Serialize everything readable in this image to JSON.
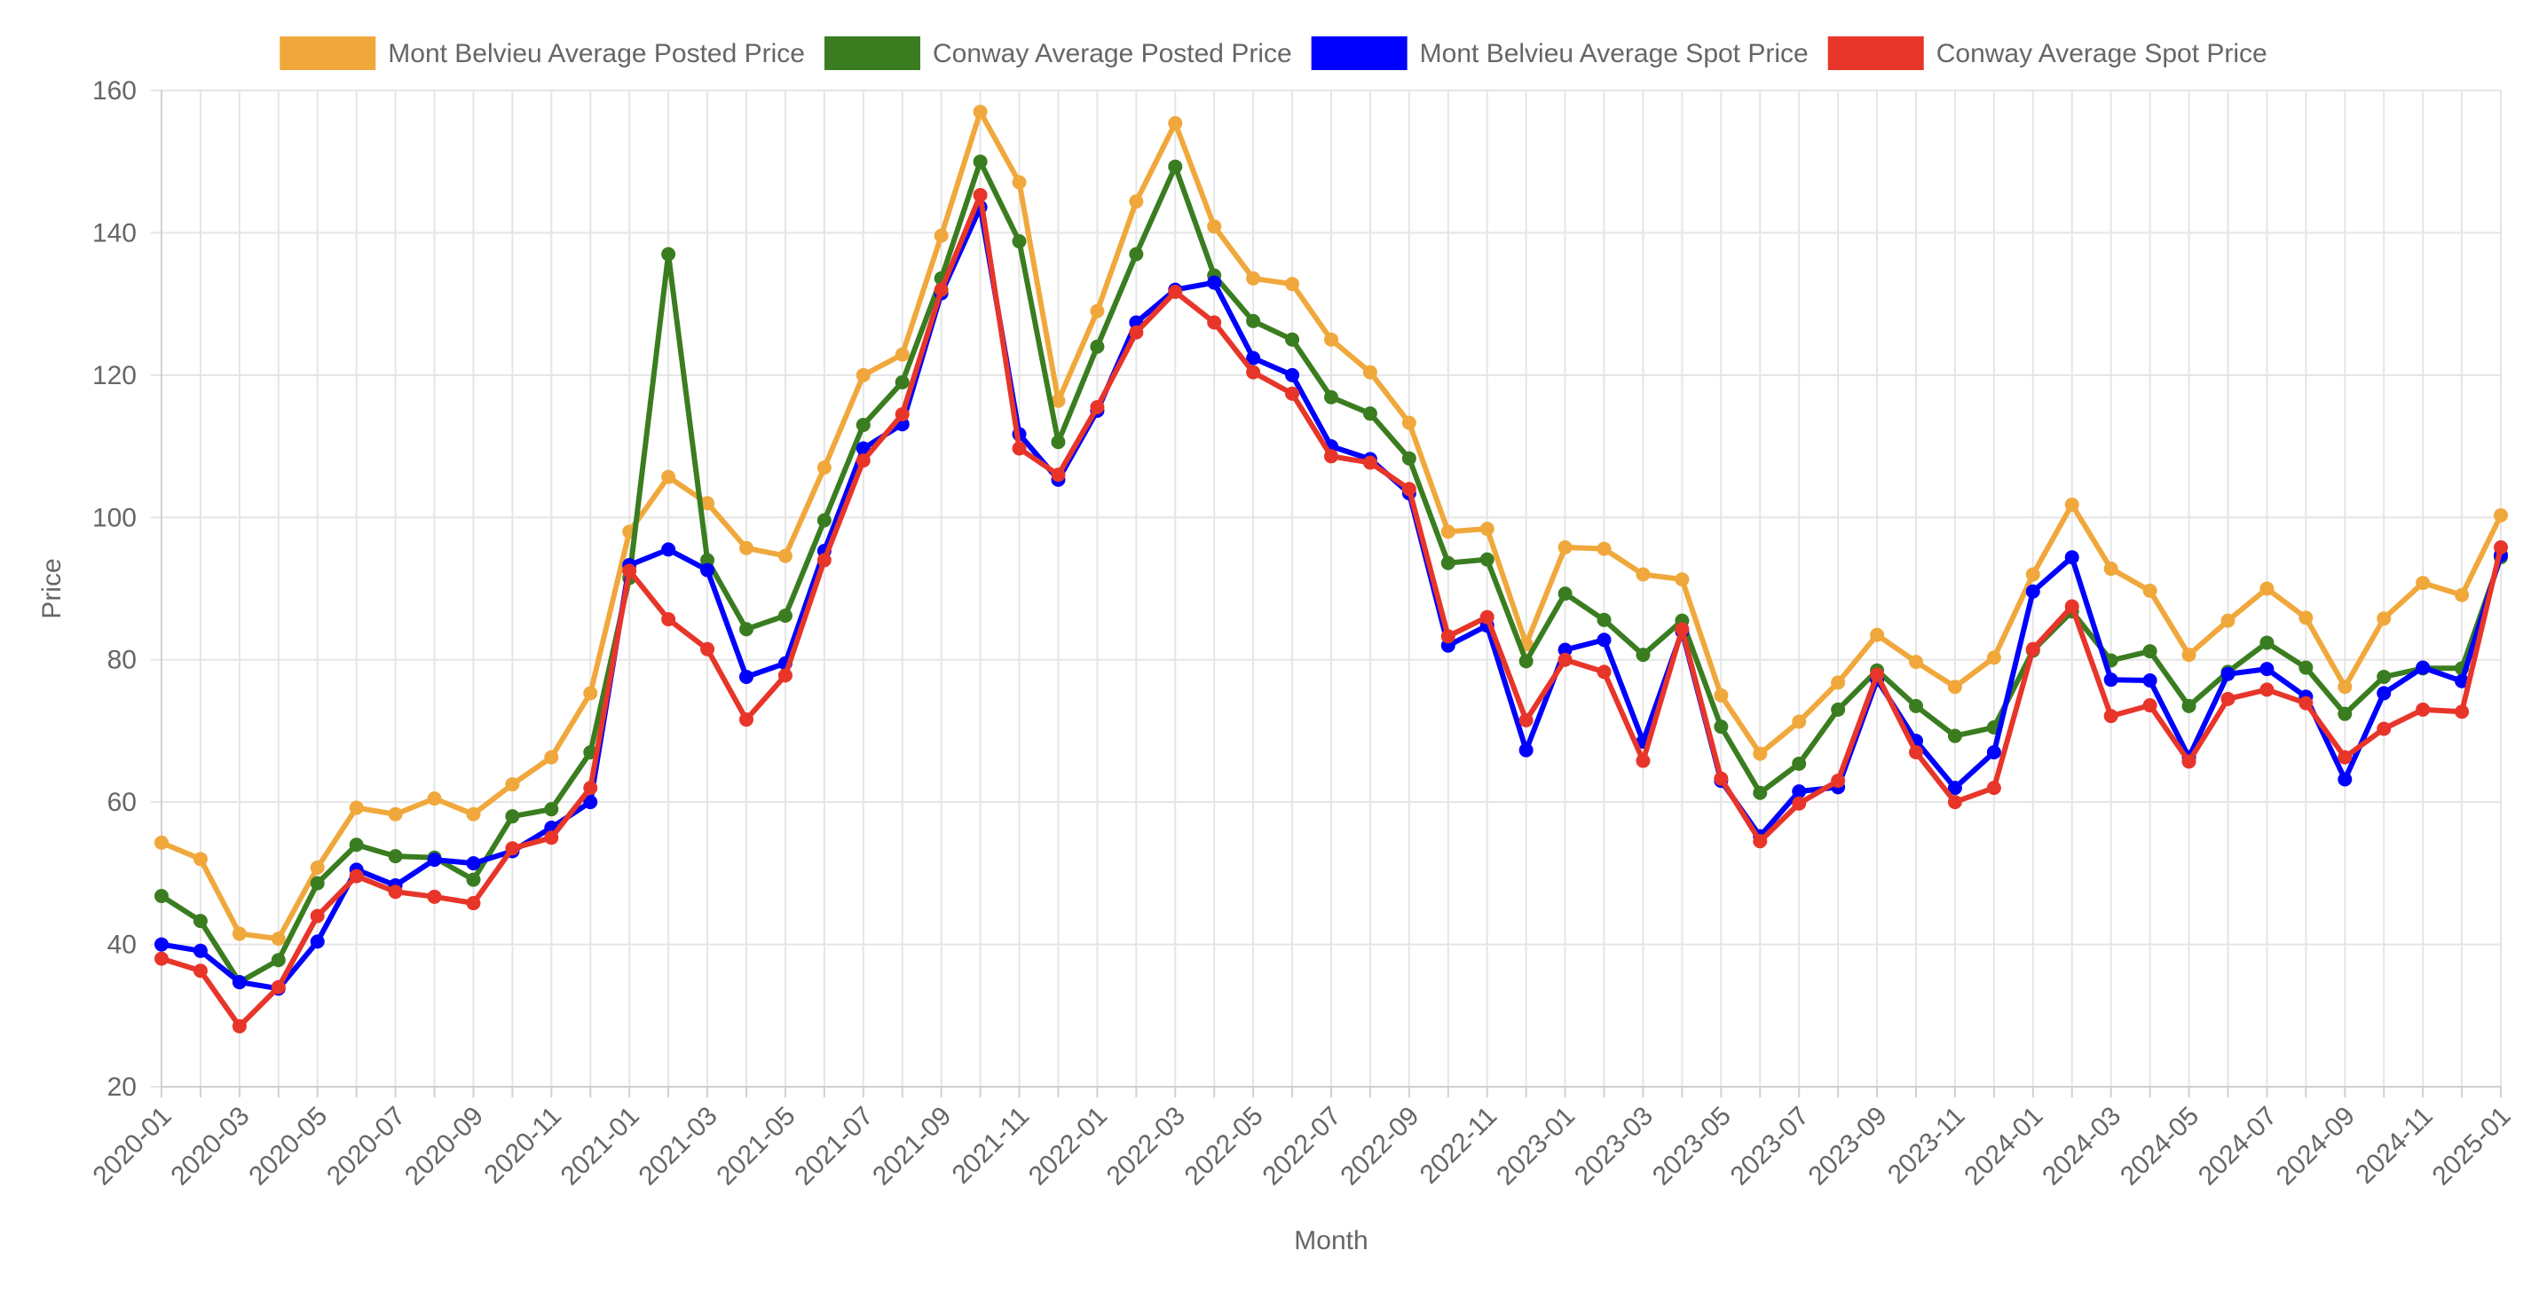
{
  "chart_data": {
    "type": "line",
    "xlabel": "Month",
    "ylabel": "Price",
    "ylim": [
      20,
      160
    ],
    "yticks": [
      20,
      40,
      60,
      80,
      100,
      120,
      140,
      160
    ],
    "grid": true,
    "legend_position": "top",
    "x": [
      "2020-01",
      "2020-02",
      "2020-03",
      "2020-04",
      "2020-05",
      "2020-06",
      "2020-07",
      "2020-08",
      "2020-09",
      "2020-10",
      "2020-11",
      "2020-12",
      "2021-01",
      "2021-02",
      "2021-03",
      "2021-04",
      "2021-05",
      "2021-06",
      "2021-07",
      "2021-08",
      "2021-09",
      "2021-10",
      "2021-11",
      "2021-12",
      "2022-01",
      "2022-02",
      "2022-03",
      "2022-04",
      "2022-05",
      "2022-06",
      "2022-07",
      "2022-08",
      "2022-09",
      "2022-10",
      "2022-11",
      "2022-12",
      "2023-01",
      "2023-02",
      "2023-03",
      "2023-04",
      "2023-05",
      "2023-06",
      "2023-07",
      "2023-08",
      "2023-09",
      "2023-10",
      "2023-11",
      "2023-12",
      "2024-01",
      "2024-02",
      "2024-03",
      "2024-04",
      "2024-05",
      "2024-06",
      "2024-07",
      "2024-08",
      "2024-09",
      "2024-10",
      "2024-11",
      "2024-12",
      "2025-01"
    ],
    "xtick_labels": [
      "2020-01",
      "2020-03",
      "2020-05",
      "2020-07",
      "2020-09",
      "2020-11",
      "2021-01",
      "2021-03",
      "2021-05",
      "2021-07",
      "2021-09",
      "2021-11",
      "2022-01",
      "2022-03",
      "2022-05",
      "2022-07",
      "2022-09",
      "2022-11",
      "2023-01",
      "2023-03",
      "2023-05",
      "2023-07",
      "2023-09",
      "2023-11",
      "2024-01",
      "2024-03",
      "2024-05",
      "2024-07",
      "2024-09",
      "2024-11",
      "2025-01"
    ],
    "series": [
      {
        "name": "Mont Belvieu Average Posted Price",
        "color": "#f0a83c",
        "values": [
          54.3,
          52.0,
          41.5,
          40.8,
          50.8,
          59.2,
          58.3,
          60.5,
          58.3,
          62.5,
          66.3,
          75.3,
          98.0,
          105.7,
          102.0,
          95.7,
          94.6,
          107.0,
          120.0,
          122.9,
          139.6,
          157.0,
          147.1,
          116.4,
          129.0,
          144.4,
          155.4,
          140.9,
          133.6,
          132.8,
          125.0,
          120.4,
          113.3,
          98.0,
          98.4,
          82.2,
          95.8,
          95.6,
          92.0,
          91.3,
          75.0,
          66.8,
          71.3,
          76.8,
          83.5,
          79.7,
          76.2,
          80.3,
          92.0,
          101.8,
          92.8,
          89.7,
          80.7,
          85.5,
          90.0,
          85.9,
          76.2,
          85.8,
          90.8,
          89.1,
          100.3
        ]
      },
      {
        "name": "Conway Average Posted Price",
        "color": "#3a7d20",
        "values": [
          46.8,
          43.3,
          34.7,
          37.8,
          48.6,
          54.0,
          52.4,
          52.2,
          49.1,
          58.0,
          59.0,
          67.0,
          91.5,
          137.0,
          94.0,
          84.3,
          86.2,
          99.6,
          113.0,
          119.0,
          133.6,
          150.0,
          138.8,
          110.6,
          124.0,
          137.0,
          149.3,
          134.0,
          127.6,
          125.0,
          116.9,
          114.6,
          108.3,
          93.6,
          94.1,
          79.8,
          89.3,
          85.6,
          80.7,
          85.5,
          70.6,
          61.3,
          65.4,
          73.0,
          78.5,
          73.5,
          69.3,
          70.5,
          81.3,
          86.8,
          79.9,
          81.2,
          73.5,
          78.3,
          82.4,
          78.9,
          72.4,
          77.6,
          78.8,
          78.8,
          94.4
        ]
      },
      {
        "name": "Mont Belvieu Average Spot Price",
        "color": "#0000ff",
        "values": [
          40.0,
          39.1,
          34.7,
          33.8,
          40.4,
          50.5,
          48.3,
          51.9,
          51.4,
          53.1,
          56.4,
          60.0,
          93.3,
          95.5,
          92.6,
          77.6,
          79.5,
          95.3,
          109.7,
          113.1,
          131.5,
          143.6,
          111.7,
          105.3,
          115.0,
          127.4,
          132.0,
          133.0,
          122.4,
          120.0,
          110.0,
          108.2,
          103.4,
          82.0,
          84.8,
          67.3,
          81.4,
          82.8,
          68.5,
          84.0,
          63.0,
          55.2,
          61.5,
          62.1,
          77.2,
          68.6,
          62.0,
          67.0,
          89.6,
          94.4,
          77.2,
          77.1,
          66.3,
          78.0,
          78.7,
          74.8,
          63.2,
          75.3,
          78.9,
          77.0,
          94.7
        ]
      },
      {
        "name": "Conway Average Spot Price",
        "color": "#e8352a",
        "values": [
          38.0,
          36.3,
          28.5,
          34.0,
          44.0,
          49.6,
          47.4,
          46.7,
          45.8,
          53.5,
          55.0,
          62.0,
          92.5,
          85.7,
          81.5,
          71.6,
          77.8,
          94.0,
          108.0,
          114.5,
          132.0,
          145.3,
          109.7,
          106.0,
          115.5,
          126.0,
          131.7,
          127.4,
          120.4,
          117.4,
          108.6,
          107.7,
          104.0,
          83.3,
          86.0,
          71.5,
          80.0,
          78.3,
          65.8,
          84.3,
          63.3,
          54.5,
          59.8,
          63.0,
          77.9,
          67.0,
          60.0,
          62.0,
          81.5,
          87.5,
          72.1,
          73.6,
          65.7,
          74.5,
          75.8,
          73.9,
          66.3,
          70.3,
          73.0,
          72.7,
          95.8
        ]
      }
    ]
  }
}
